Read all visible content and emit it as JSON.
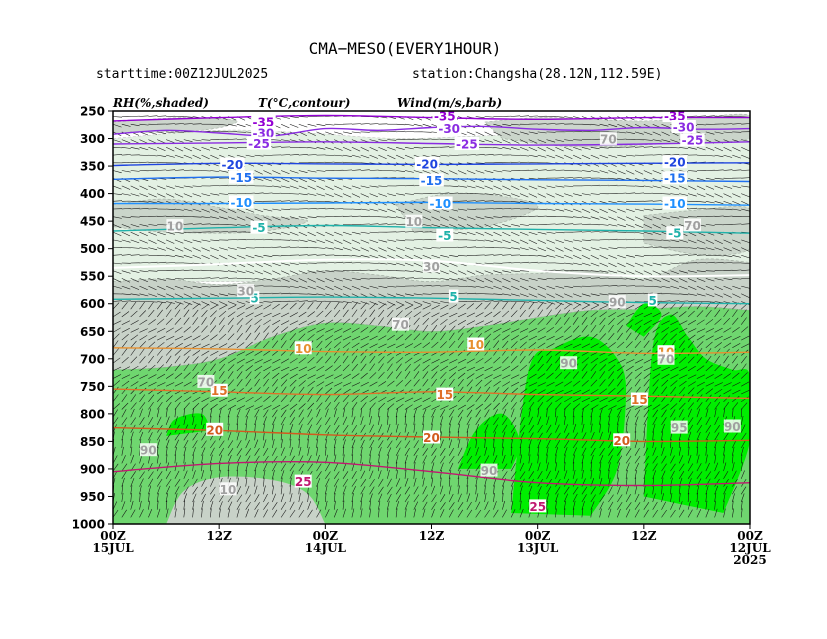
{
  "header": {
    "title": "CMA−MESO(EVERY1HOUR)",
    "starttime": "starttime:00Z12JUL2025",
    "station": "station:Changsha(28.12N,112.59E)",
    "var_rh": "RH(%,shaded)",
    "var_t": "T(°C,contour)",
    "var_wind": "Wind(m/s,barb)"
  },
  "colors": {
    "rh_30_70": "#e3f1e3",
    "rh_70_90": "#c8d2c8",
    "rh_90_95": "#6fd66f",
    "rh_95_100": "#00ee00",
    "t_m35": "#9400d3",
    "t_m30": "#8a2be2",
    "t_m25": "#8a2be2",
    "t_m20": "#1f45e0",
    "t_m15": "#1e6ff0",
    "t_m10": "#1e90ff",
    "t_m5": "#20b2aa",
    "t_0": "#ffffff",
    "t_5": "#20b2aa",
    "t_10": "#e69030",
    "t_15": "#e07028",
    "t_20": "#d25a1e",
    "t_25": "#c01870"
  },
  "chart_data": {
    "type": "time-height cross section",
    "y_axis": {
      "ticks": [
        "250",
        "300",
        "350",
        "400",
        "450",
        "500",
        "550",
        "600",
        "650",
        "700",
        "750",
        "800",
        "850",
        "900",
        "950",
        "1000"
      ],
      "range": [
        250,
        1000
      ]
    },
    "x_axis": {
      "ticks": [
        {
          "hour": 72,
          "l1": "00Z",
          "l2": "15JUL",
          "l3": ""
        },
        {
          "hour": 60,
          "l1": "12Z",
          "l2": "",
          "l3": ""
        },
        {
          "hour": 48,
          "l1": "00Z",
          "l2": "14JUL",
          "l3": ""
        },
        {
          "hour": 36,
          "l1": "12Z",
          "l2": "",
          "l3": ""
        },
        {
          "hour": 24,
          "l1": "00Z",
          "l2": "13JUL",
          "l3": ""
        },
        {
          "hour": 12,
          "l1": "12Z",
          "l2": "",
          "l3": ""
        },
        {
          "hour": 0,
          "l1": "00Z",
          "l2": "12JUL",
          "l3": "2025"
        }
      ],
      "range_hours": [
        72,
        0
      ]
    },
    "temperature_contours": [
      {
        "value": -35,
        "label": "-35",
        "color_key": "t_m35",
        "points": [
          [
            72,
            268
          ],
          [
            60,
            262
          ],
          [
            48,
            258
          ],
          [
            36,
            262
          ],
          [
            24,
            265
          ],
          [
            12,
            262
          ],
          [
            0,
            262
          ]
        ]
      },
      {
        "value": -30,
        "label": "-30",
        "color_key": "t_m30",
        "points": [
          [
            72,
            292
          ],
          [
            66,
            285
          ],
          [
            60,
            290
          ],
          [
            54,
            295
          ],
          [
            48,
            282
          ],
          [
            42,
            285
          ],
          [
            36,
            280
          ],
          [
            30,
            278
          ],
          [
            24,
            283
          ],
          [
            18,
            285
          ],
          [
            12,
            280
          ],
          [
            6,
            283
          ],
          [
            0,
            282
          ]
        ]
      },
      {
        "value": -25,
        "label": "-25",
        "color_key": "t_m25",
        "points": [
          [
            72,
            310
          ],
          [
            60,
            308
          ],
          [
            48,
            306
          ],
          [
            36,
            309
          ],
          [
            24,
            312
          ],
          [
            12,
            310
          ],
          [
            0,
            306
          ]
        ]
      },
      {
        "value": -20,
        "label": "-20",
        "color_key": "t_m20",
        "points": [
          [
            72,
            349
          ],
          [
            60,
            345
          ],
          [
            48,
            346
          ],
          [
            36,
            347
          ],
          [
            24,
            346
          ],
          [
            12,
            345
          ],
          [
            0,
            344
          ]
        ]
      },
      {
        "value": -15,
        "label": "-15",
        "color_key": "t_m15",
        "points": [
          [
            72,
            374
          ],
          [
            60,
            370
          ],
          [
            48,
            372
          ],
          [
            36,
            373
          ],
          [
            24,
            375
          ],
          [
            12,
            376
          ],
          [
            0,
            378
          ]
        ]
      },
      {
        "value": -10,
        "label": "-10",
        "color_key": "t_m10",
        "points": [
          [
            72,
            418
          ],
          [
            60,
            418
          ],
          [
            48,
            417
          ],
          [
            36,
            416
          ],
          [
            24,
            418
          ],
          [
            12,
            419
          ],
          [
            0,
            421
          ]
        ]
      },
      {
        "value": -5,
        "label": "-5",
        "color_key": "t_m5",
        "points": [
          [
            72,
            468
          ],
          [
            60,
            462
          ],
          [
            48,
            458
          ],
          [
            36,
            462
          ],
          [
            24,
            465
          ],
          [
            12,
            468
          ],
          [
            0,
            472
          ]
        ]
      },
      {
        "value": 0,
        "label": "",
        "color_key": "t_0",
        "points": [
          [
            72,
            535
          ],
          [
            60,
            528
          ],
          [
            48,
            520
          ],
          [
            36,
            522
          ],
          [
            24,
            540
          ],
          [
            12,
            550
          ],
          [
            0,
            548
          ]
        ]
      },
      {
        "value": 5,
        "label": "5",
        "color_key": "t_5",
        "points": [
          [
            72,
            592
          ],
          [
            60,
            590
          ],
          [
            48,
            588
          ],
          [
            36,
            590
          ],
          [
            24,
            594
          ],
          [
            12,
            598
          ],
          [
            0,
            600
          ]
        ]
      },
      {
        "value": 10,
        "label": "10",
        "color_key": "t_10",
        "points": [
          [
            72,
            680
          ],
          [
            60,
            682
          ],
          [
            48,
            687
          ],
          [
            36,
            688
          ],
          [
            24,
            684
          ],
          [
            12,
            690
          ],
          [
            0,
            688
          ]
        ]
      },
      {
        "value": 15,
        "label": "15",
        "color_key": "t_15",
        "points": [
          [
            72,
            755
          ],
          [
            60,
            760
          ],
          [
            48,
            765
          ],
          [
            36,
            760
          ],
          [
            24,
            765
          ],
          [
            12,
            768
          ],
          [
            0,
            772
          ]
        ]
      },
      {
        "value": 20,
        "label": "20",
        "color_key": "t_20",
        "points": [
          [
            72,
            825
          ],
          [
            60,
            830
          ],
          [
            48,
            838
          ],
          [
            36,
            842
          ],
          [
            24,
            845
          ],
          [
            12,
            850
          ],
          [
            0,
            848
          ]
        ]
      },
      {
        "value": 25,
        "label": "25",
        "color_key": "t_25",
        "points": [
          [
            72,
            905
          ],
          [
            60,
            890
          ],
          [
            48,
            888
          ],
          [
            36,
            905
          ],
          [
            24,
            925
          ],
          [
            12,
            930
          ],
          [
            0,
            925
          ]
        ]
      }
    ],
    "contour_labels": [
      {
        "text": "-35",
        "hour": 34.5,
        "p": 259,
        "color_key": "t_m35"
      },
      {
        "text": "-35",
        "hour": 8.5,
        "p": 259,
        "color_key": "t_m35"
      },
      {
        "text": "-35",
        "hour": 55,
        "p": 270,
        "color_key": "t_m35"
      },
      {
        "text": "-30",
        "hour": 55,
        "p": 290,
        "color_key": "t_m30"
      },
      {
        "text": "-30",
        "hour": 34,
        "p": 282,
        "color_key": "t_m30"
      },
      {
        "text": "-30",
        "hour": 7.5,
        "p": 279,
        "color_key": "t_m30"
      },
      {
        "text": "-25",
        "hour": 55.5,
        "p": 309,
        "color_key": "t_m25"
      },
      {
        "text": "-25",
        "hour": 32,
        "p": 310,
        "color_key": "t_m25"
      },
      {
        "text": "-25",
        "hour": 6.5,
        "p": 303,
        "color_key": "t_m25"
      },
      {
        "text": "-20",
        "hour": 58.5,
        "p": 347,
        "color_key": "t_m20"
      },
      {
        "text": "-20",
        "hour": 36.5,
        "p": 346,
        "color_key": "t_m20"
      },
      {
        "text": "-20",
        "hour": 8.5,
        "p": 343,
        "color_key": "t_m20"
      },
      {
        "text": "-15",
        "hour": 57.5,
        "p": 371,
        "color_key": "t_m15"
      },
      {
        "text": "-15",
        "hour": 36,
        "p": 376,
        "color_key": "t_m15"
      },
      {
        "text": "-15",
        "hour": 8.5,
        "p": 372,
        "color_key": "t_m15"
      },
      {
        "text": "-10",
        "hour": 57.5,
        "p": 416,
        "color_key": "t_m10"
      },
      {
        "text": "-10",
        "hour": 35,
        "p": 418,
        "color_key": "t_m10"
      },
      {
        "text": "-10",
        "hour": 8.5,
        "p": 418,
        "color_key": "t_m10"
      },
      {
        "text": "-5",
        "hour": 55.5,
        "p": 462,
        "color_key": "t_m5"
      },
      {
        "text": "-5",
        "hour": 34.5,
        "p": 476,
        "color_key": "t_m5"
      },
      {
        "text": "-5",
        "hour": 8.5,
        "p": 472,
        "color_key": "t_m5"
      },
      {
        "text": "5",
        "hour": 56,
        "p": 590,
        "color_key": "t_5"
      },
      {
        "text": "5",
        "hour": 33.5,
        "p": 587,
        "color_key": "t_5"
      },
      {
        "text": "5",
        "hour": 11,
        "p": 594,
        "color_key": "t_5"
      },
      {
        "text": "10",
        "hour": 50.5,
        "p": 681,
        "color_key": "t_10"
      },
      {
        "text": "10",
        "hour": 31,
        "p": 674,
        "color_key": "t_10"
      },
      {
        "text": "10",
        "hour": 9.5,
        "p": 688,
        "color_key": "t_10"
      },
      {
        "text": "15",
        "hour": 60,
        "p": 758,
        "color_key": "t_15"
      },
      {
        "text": "15",
        "hour": 34.5,
        "p": 765,
        "color_key": "t_15"
      },
      {
        "text": "15",
        "hour": 12.5,
        "p": 774,
        "color_key": "t_15"
      },
      {
        "text": "20",
        "hour": 60.5,
        "p": 829,
        "color_key": "t_20"
      },
      {
        "text": "20",
        "hour": 36,
        "p": 843,
        "color_key": "t_20"
      },
      {
        "text": "20",
        "hour": 14.5,
        "p": 848,
        "color_key": "t_20"
      },
      {
        "text": "25",
        "hour": 50.5,
        "p": 923,
        "color_key": "t_25"
      },
      {
        "text": "25",
        "hour": 24,
        "p": 968,
        "color_key": "t_25"
      }
    ],
    "rh_labels": [
      {
        "text": "10",
        "hour": 65,
        "p": 459
      },
      {
        "text": "10",
        "hour": 38,
        "p": 451
      },
      {
        "text": "30",
        "hour": 36,
        "p": 532
      },
      {
        "text": "30",
        "hour": 57,
        "p": 577
      },
      {
        "text": "70",
        "hour": 16,
        "p": 301
      },
      {
        "text": "70",
        "hour": 6.5,
        "p": 458
      },
      {
        "text": "70",
        "hour": 39.5,
        "p": 638
      },
      {
        "text": "70",
        "hour": 9.5,
        "p": 700
      },
      {
        "text": "70",
        "hour": 61.5,
        "p": 742
      },
      {
        "text": "90",
        "hour": 15,
        "p": 597
      },
      {
        "text": "90",
        "hour": 20.5,
        "p": 708
      },
      {
        "text": "90",
        "hour": 68,
        "p": 866
      },
      {
        "text": "90",
        "hour": 29.5,
        "p": 903
      },
      {
        "text": "90",
        "hour": 2,
        "p": 823
      },
      {
        "text": "95",
        "hour": 8,
        "p": 825
      },
      {
        "text": "10",
        "hour": 59,
        "p": 937
      }
    ]
  }
}
